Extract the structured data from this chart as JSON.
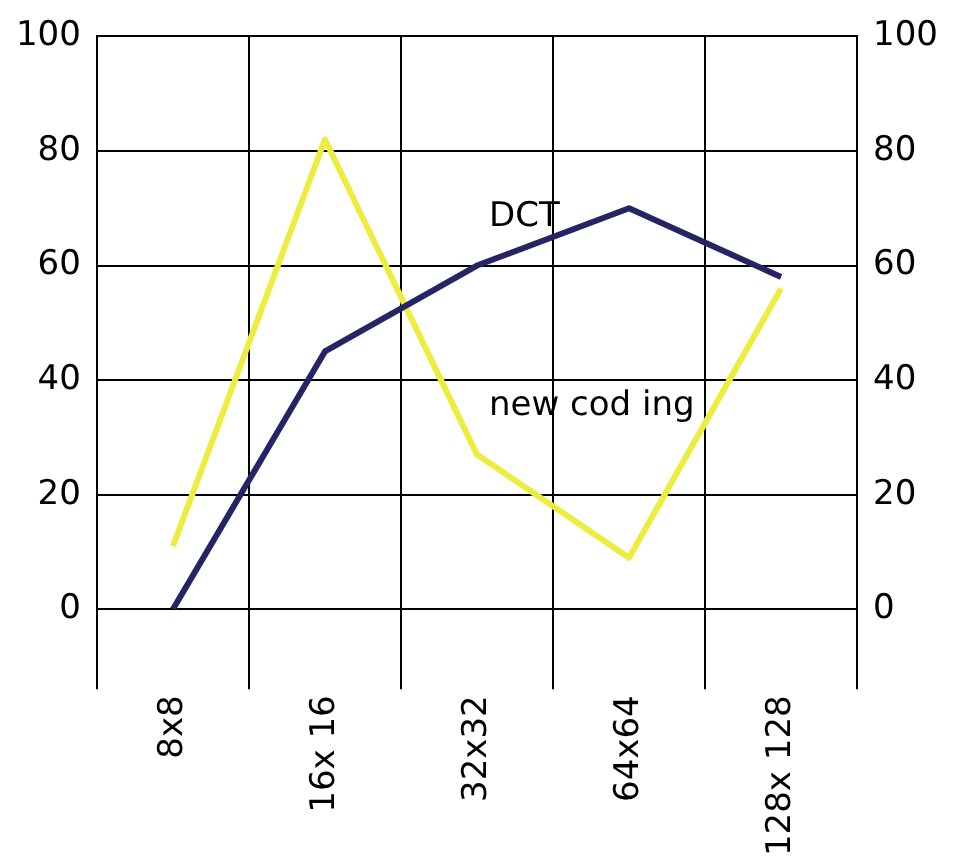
{
  "chart_data": {
    "type": "line",
    "categories": [
      "8x8",
      "16x 16",
      "32x32",
      "64x64",
      "128x 128"
    ],
    "series": [
      {
        "name": "DCT",
        "color": "#252566",
        "values": [
          0,
          45,
          60,
          70,
          58
        ]
      },
      {
        "name": "new cod ing",
        "color": "#eded40",
        "values": [
          11,
          82,
          27,
          9,
          56
        ]
      }
    ],
    "ylim": [
      0,
      100
    ],
    "yticks": [
      0,
      20,
      40,
      60,
      80,
      100
    ],
    "y2lim": [
      0,
      100
    ],
    "y2ticks": [
      0,
      20,
      40,
      60,
      80,
      100
    ],
    "grid": true,
    "legend": false,
    "marker": "none",
    "line_style": "solid"
  }
}
